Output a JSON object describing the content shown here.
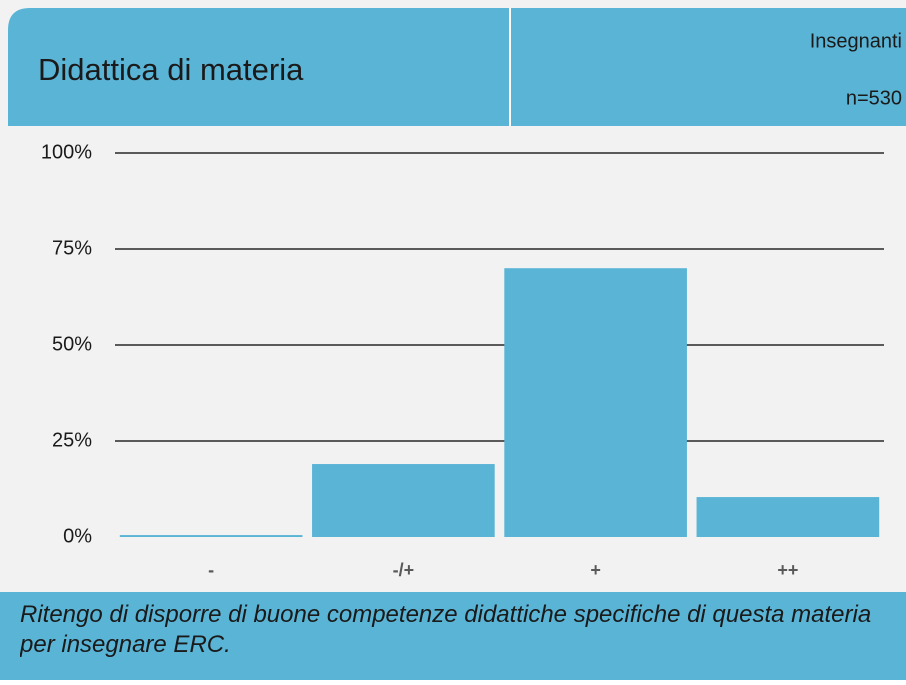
{
  "header": {
    "title": "Didattica di materia",
    "group": "Insegnanti",
    "sample": "n=530"
  },
  "chart_data": {
    "type": "bar",
    "categories": [
      "-",
      "-/+",
      "+",
      "++"
    ],
    "values": [
      0.5,
      19,
      70,
      10.4
    ],
    "color": "#5ab4d6",
    "ylim": [
      0,
      100
    ],
    "yticks": [
      {
        "value": 0,
        "label": "0%"
      },
      {
        "value": 25,
        "label": "25%"
      },
      {
        "value": 50,
        "label": "50%"
      },
      {
        "value": 75,
        "label": "75%"
      },
      {
        "value": 100,
        "label": "100%"
      }
    ],
    "grid": true
  },
  "footer": {
    "text": "Ritengo di disporre di buone competenze didattiche specifiche di questa materia per insegnare ERC."
  }
}
